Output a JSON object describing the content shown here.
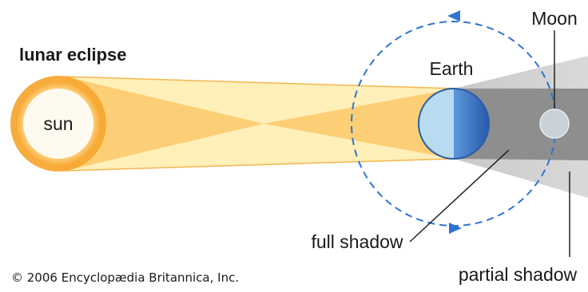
{
  "diagram": {
    "title": "lunar eclipse",
    "labels": {
      "sun": "sun",
      "earth": "Earth",
      "moon": "Moon",
      "full_shadow": "full shadow",
      "partial_shadow": "partial shadow"
    },
    "copyright": "© 2006 Encyclopædia Britannica, Inc.",
    "colors": {
      "sun_glow": "#f7a833",
      "sun_core": "#fff8df",
      "light_beam": "#ffefb8",
      "light_cone": "#fcc96a",
      "earth_day": "#b8dbef",
      "earth_night": "#3b74c6",
      "umbra": "#8e8e8e",
      "penumbra": "#cfcfcf",
      "moon": "#c9d2d8",
      "orbit": "#2f74d0"
    }
  }
}
